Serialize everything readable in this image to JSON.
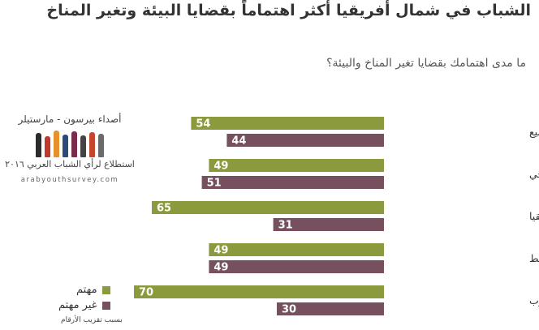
{
  "header": {
    "title": "الشباب في شمال أفريقيا أكثر اهتماماً بقضايا البيئة وتغير المناخ",
    "question": "ما مدى اهتمامك بقضايا تغير المناخ والبيئة؟"
  },
  "logo": {
    "line1": "أصداء بيرسون - مارستيلر",
    "line2": "استطلاع لرأي الشباب العربي ٢٠١٦",
    "url": "arabyouthsurvey.com"
  },
  "legend": {
    "concerned": "مهتم",
    "not_concerned": "غير مهتم"
  },
  "footnote": "بسبب تقريب الأرقام",
  "colors": {
    "concerned": "#8a9a3c",
    "not_concerned": "#76505e"
  },
  "chart_data": {
    "type": "bar",
    "orientation": "horizontal",
    "categories": [
      "الجميع",
      "دول مجلس التعاون الخليجي",
      "شمال أفريقيا",
      "شرق المتوسط",
      "المغرب"
    ],
    "series": [
      {
        "name": "مهتم",
        "values": [
          54,
          49,
          65,
          49,
          70
        ]
      },
      {
        "name": "غير مهتم",
        "values": [
          44,
          51,
          31,
          49,
          30
        ]
      }
    ],
    "xlim": [
      0,
      100
    ],
    "grid": false,
    "legend_position": "bottom-left"
  }
}
